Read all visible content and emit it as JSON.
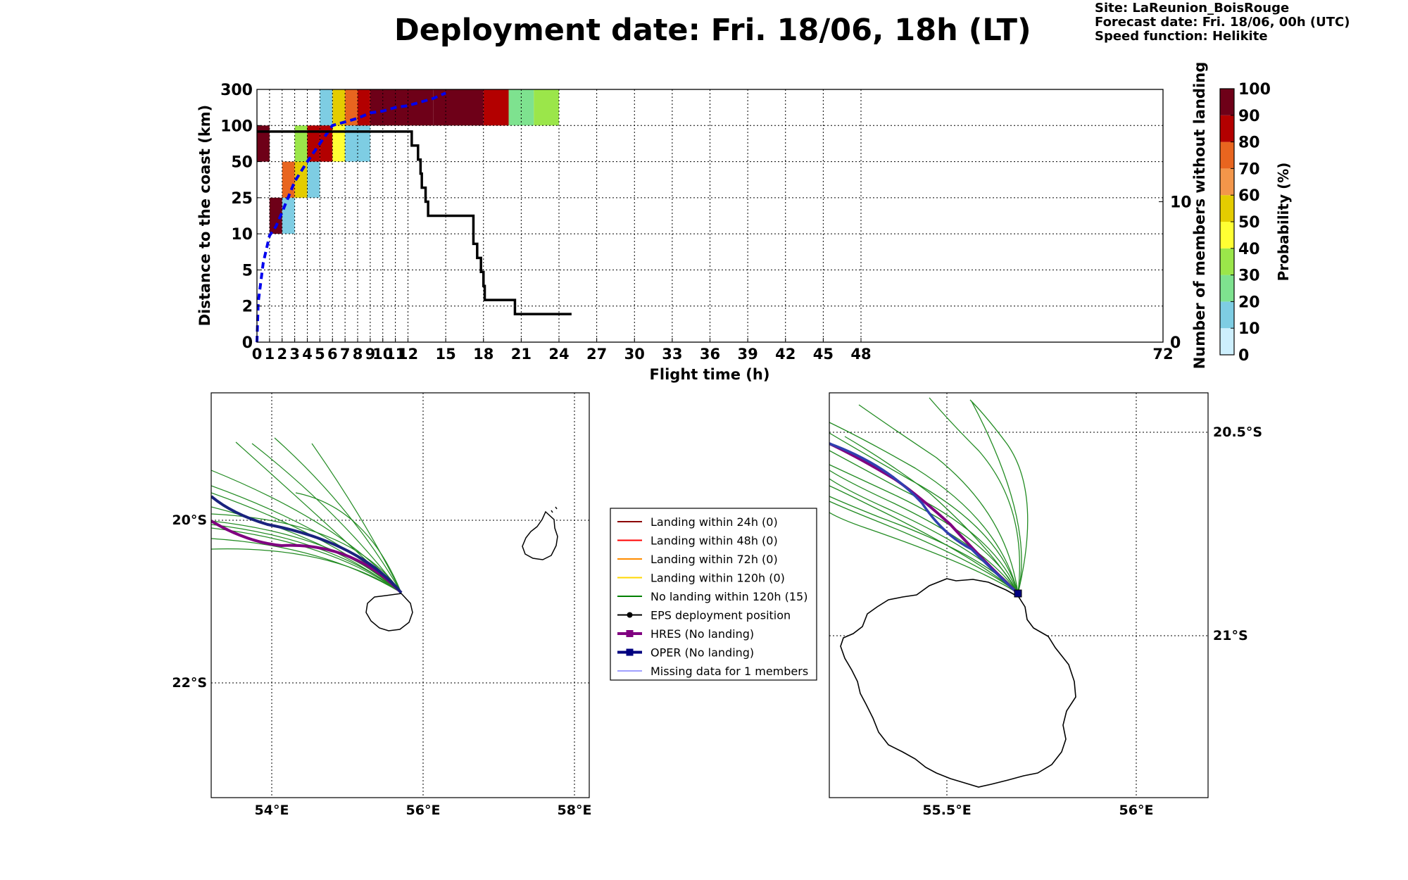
{
  "header": {
    "title": "Deployment date: Fri. 18/06, 18h (LT)",
    "site": "Site: LaReunion_BoisRouge",
    "forecast": "Forecast date: Fri. 18/06, 00h (UTC)",
    "speed": "Speed function: Helikite"
  },
  "chart_data": [
    {
      "type": "heatmap",
      "title": "Deployment date: Fri. 18/06, 18h (LT)",
      "xlabel": "Flight time (h)",
      "ylabel": "Distance to the coast (km)",
      "y2label": "Number of members without landing",
      "colorbar_label": "Probability (%)",
      "x_ticks": [
        "0",
        "1",
        "2",
        "3",
        "4",
        "5",
        "6",
        "7",
        "8",
        "9",
        "10",
        "11",
        "12",
        "13",
        "14",
        "15",
        "16",
        "17",
        "18",
        "19",
        "20",
        "21",
        "22",
        "23",
        "24",
        "25",
        "26",
        "27",
        "28",
        "29",
        "30",
        "31",
        "32",
        "33",
        "34",
        "35",
        "36",
        "37",
        "38",
        "39",
        "40",
        "41",
        "42",
        "43",
        "44",
        "45",
        "46",
        "47",
        "48",
        "49",
        "50",
        "51",
        "52",
        "53",
        "54",
        "55",
        "56",
        "57",
        "58",
        "59",
        "60",
        "61",
        "62",
        "63",
        "64",
        "65",
        "66",
        "67",
        "68",
        "69",
        "70",
        "71",
        "72"
      ],
      "x_tick_labels_shown": [
        "0",
        "1",
        "2",
        "3",
        "4",
        "5",
        "6",
        "7",
        "8",
        "9",
        "10",
        "11",
        "12",
        "15",
        "18",
        "21",
        "24",
        "27",
        "30",
        "33",
        "36",
        "39",
        "42",
        "45",
        "48",
        "72"
      ],
      "y_bins": [
        "0",
        "2",
        "5",
        "10",
        "25",
        "50",
        "100",
        "300"
      ],
      "y2_ticks": [
        "0",
        "10"
      ],
      "y2lim": [
        0,
        18
      ],
      "grid": true,
      "colorbar": {
        "ticks": [
          "0",
          "10",
          "20",
          "30",
          "40",
          "50",
          "60",
          "70",
          "80",
          "90",
          "100"
        ],
        "colors": [
          "#cdeffd",
          "#7ecde3",
          "#7ee28f",
          "#9be64a",
          "#ffff33",
          "#e4cc00",
          "#f3964a",
          "#e8651f",
          "#b30000",
          "#6e0018"
        ]
      },
      "cells": [
        {
          "x0": 0,
          "x1": 1,
          "y0": 5,
          "y1": 6,
          "p": 95
        },
        {
          "x0": 1,
          "x1": 2,
          "y0": 3,
          "y1": 4,
          "p": 95
        },
        {
          "x0": 2,
          "x1": 3,
          "y0": 4,
          "y1": 5,
          "p": 75
        },
        {
          "x0": 2,
          "x1": 3,
          "y0": 3,
          "y1": 4,
          "p": 15
        },
        {
          "x0": 3,
          "x1": 4,
          "y0": 5,
          "y1": 6,
          "p": 35
        },
        {
          "x0": 3,
          "x1": 4,
          "y0": 4,
          "y1": 5,
          "p": 55
        },
        {
          "x0": 4,
          "x1": 5,
          "y0": 5,
          "y1": 6,
          "p": 85
        },
        {
          "x0": 4,
          "x1": 5,
          "y0": 4,
          "y1": 5,
          "p": 15
        },
        {
          "x0": 5,
          "x1": 6,
          "y0": 6,
          "y1": 7,
          "p": 15
        },
        {
          "x0": 5,
          "x1": 6,
          "y0": 5,
          "y1": 6,
          "p": 85
        },
        {
          "x0": 6,
          "x1": 7,
          "y0": 6,
          "y1": 7,
          "p": 55
        },
        {
          "x0": 6,
          "x1": 7,
          "y0": 5,
          "y1": 6,
          "p": 45
        },
        {
          "x0": 7,
          "x1": 8,
          "y0": 6,
          "y1": 7,
          "p": 75
        },
        {
          "x0": 7,
          "x1": 9,
          "y0": 5,
          "y1": 6,
          "p": 15
        },
        {
          "x0": 8,
          "x1": 9,
          "y0": 6,
          "y1": 7,
          "p": 85
        },
        {
          "x0": 9,
          "x1": 14,
          "y0": 6,
          "y1": 7,
          "p": 95
        },
        {
          "x0": 14,
          "x1": 18,
          "y0": 6,
          "y1": 7,
          "p": 95
        },
        {
          "x0": 18,
          "x1": 20,
          "y0": 6,
          "y1": 7,
          "p": 85
        },
        {
          "x0": 20,
          "x1": 22,
          "y0": 6,
          "y1": 7,
          "p": 25
        },
        {
          "x0": 22,
          "x1": 24,
          "y0": 6,
          "y1": 7,
          "p": 35
        }
      ],
      "median_distance_line": {
        "color": "#0000ee",
        "points": [
          [
            0,
            0
          ],
          [
            0.1,
            1.1
          ],
          [
            0.5,
            2.2
          ],
          [
            1,
            2.95
          ],
          [
            1.5,
            3.2
          ],
          [
            2,
            3.6
          ],
          [
            3,
            4.45
          ],
          [
            4,
            5.0
          ],
          [
            5,
            5.5
          ],
          [
            6,
            6.0
          ],
          [
            7,
            6.1
          ],
          [
            8,
            6.2
          ],
          [
            9,
            6.35
          ],
          [
            10,
            6.4
          ],
          [
            11,
            6.5
          ],
          [
            12,
            6.55
          ],
          [
            13,
            6.65
          ],
          [
            14,
            6.75
          ],
          [
            15,
            6.9
          ]
        ]
      },
      "members_without_landing": {
        "color": "#000000",
        "points": [
          [
            0,
            15
          ],
          [
            12.3,
            15
          ],
          [
            12.3,
            14
          ],
          [
            12.8,
            14
          ],
          [
            12.8,
            13
          ],
          [
            13.0,
            13
          ],
          [
            13.0,
            12
          ],
          [
            13.1,
            12
          ],
          [
            13.1,
            11
          ],
          [
            13.4,
            11
          ],
          [
            13.4,
            10
          ],
          [
            13.6,
            10
          ],
          [
            13.6,
            9
          ],
          [
            17.2,
            9
          ],
          [
            17.2,
            7
          ],
          [
            17.5,
            7
          ],
          [
            17.5,
            6
          ],
          [
            17.8,
            6
          ],
          [
            17.8,
            5
          ],
          [
            18.0,
            5
          ],
          [
            18.0,
            4
          ],
          [
            18.1,
            4
          ],
          [
            18.1,
            3
          ],
          [
            20.5,
            3
          ],
          [
            20.5,
            2
          ],
          [
            25,
            2
          ]
        ]
      }
    }
  ],
  "maps": {
    "left": {
      "lon_ticks": [
        "54°E",
        "56°E",
        "58°E"
      ],
      "lat_ticks": [
        "20°S",
        "22°S"
      ]
    },
    "right": {
      "lon_ticks": [
        "55.5°E",
        "56°E"
      ],
      "lat_ticks": [
        "20.5°S",
        "21°S"
      ]
    }
  },
  "legend": {
    "items": [
      {
        "label": "Landing within 24h (0)",
        "color": "#8b0000",
        "marker": "none",
        "width": 2
      },
      {
        "label": "Landing within 48h (0)",
        "color": "#ff0000",
        "marker": "none",
        "width": 2
      },
      {
        "label": "Landing within 72h (0)",
        "color": "#ff8c00",
        "marker": "none",
        "width": 2
      },
      {
        "label": "Landing within 120h (0)",
        "color": "#ffd700",
        "marker": "none",
        "width": 2
      },
      {
        "label": "No landing within 120h (15)",
        "color": "#008000",
        "marker": "none",
        "width": 2
      },
      {
        "label": "EPS deployment position",
        "color": "#000000",
        "marker": "circle",
        "width": 2
      },
      {
        "label": "HRES (No landing)",
        "color": "#800080",
        "marker": "square",
        "width": 4
      },
      {
        "label": "OPER (No landing)",
        "color": "#000080",
        "marker": "square",
        "width": 4
      },
      {
        "label": "Missing data for 1 members",
        "color": "#4040ff",
        "marker": "none",
        "width": 1
      }
    ]
  }
}
